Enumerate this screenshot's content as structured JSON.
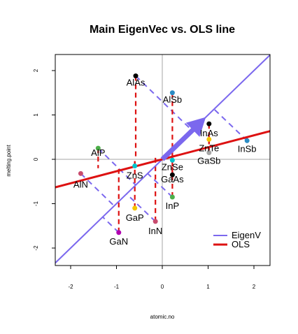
{
  "chart_data": {
    "type": "scatter",
    "title": "Main EigenVec vs. OLS line",
    "xlabel": "atomic.no",
    "ylabel": "melting.point",
    "xlim": [
      -2.35,
      2.4
    ],
    "ylim": [
      -2.4,
      2.4
    ],
    "xticks": [
      -2,
      -1,
      0,
      1,
      2
    ],
    "yticks": [
      -2,
      -1,
      0,
      1,
      2
    ],
    "reference_lines": {
      "h": 0,
      "v": 0,
      "color": "#a6a6a6"
    },
    "points": [
      {
        "label": "AlAs",
        "x": -0.58,
        "y": 1.88,
        "proj_x": -0.58,
        "proj_y": 0.0,
        "color": "#000000"
      },
      {
        "label": "AlSb",
        "x": 0.22,
        "y": 1.5,
        "proj_x": 0.22,
        "proj_y": 0.18,
        "color": "#2b8cc4"
      },
      {
        "label": "InAs",
        "x": 1.02,
        "y": 0.8,
        "proj_x": 1.02,
        "proj_y": 0.35,
        "color": "#000000"
      },
      {
        "label": "ZnTe",
        "x": 1.02,
        "y": 0.45,
        "proj_x": 1.02,
        "proj_y": 0.35,
        "color": "#f5c400"
      },
      {
        "label": "InSb",
        "x": 1.85,
        "y": 0.42,
        "proj_x": 1.85,
        "proj_y": 0.52,
        "color": "#2b8cc4"
      },
      {
        "label": "GaSb",
        "x": 1.02,
        "y": 0.15,
        "proj_x": 1.02,
        "proj_y": 0.35,
        "color": "#a6a6a6"
      },
      {
        "label": "ZnSe",
        "x": 0.22,
        "y": -0.02,
        "proj_x": 0.22,
        "proj_y": 0.18,
        "color": "#00c5cd"
      },
      {
        "label": "GaAs",
        "x": 0.22,
        "y": -0.35,
        "proj_x": 0.22,
        "proj_y": 0.18,
        "color": "#000000"
      },
      {
        "label": "AlP",
        "x": -1.4,
        "y": 0.25,
        "proj_x": -1.4,
        "proj_y": -0.2,
        "color": "#4daf4a"
      },
      {
        "label": "ZnS",
        "x": -0.6,
        "y": -0.15,
        "proj_x": -0.6,
        "proj_y": 0.0,
        "color": "#00c5cd"
      },
      {
        "label": "AlN",
        "x": -1.78,
        "y": -0.32,
        "proj_x": -1.78,
        "proj_y": -0.32,
        "color": "#c84b6e"
      },
      {
        "label": "InP",
        "x": 0.22,
        "y": -0.85,
        "proj_x": 0.22,
        "proj_y": 0.18,
        "color": "#4daf4a"
      },
      {
        "label": "GaP",
        "x": -0.6,
        "y": -1.1,
        "proj_x": -0.6,
        "proj_y": 0.0,
        "color": "#f5c400"
      },
      {
        "label": "InN",
        "x": -0.15,
        "y": -1.4,
        "proj_x": -0.15,
        "proj_y": 0.09,
        "color": "#c84b6e"
      },
      {
        "label": "GaN",
        "x": -0.95,
        "y": -1.65,
        "proj_x": -0.95,
        "proj_y": -0.14,
        "color": "#b000b0"
      }
    ],
    "eigen_line": {
      "name": "EigenV",
      "slope": 1.0,
      "intercept": 0.0,
      "color": "#7b68ee"
    },
    "ols_line": {
      "name": "OLS",
      "slope": 0.27,
      "intercept": 0.0,
      "color": "#dd1111"
    },
    "eigen_projections": [
      {
        "from": [
          -0.58,
          1.88
        ],
        "to": [
          0.65,
          0.65
        ]
      },
      {
        "from": [
          1.85,
          0.42
        ],
        "to": [
          1.13,
          1.13
        ]
      },
      {
        "from": [
          -1.4,
          0.25
        ],
        "to": [
          -0.58,
          -0.58
        ]
      },
      {
        "from": [
          -1.78,
          -0.32
        ],
        "to": [
          -1.05,
          -1.05
        ]
      },
      {
        "from": [
          -0.95,
          -1.65
        ],
        "to": [
          -1.3,
          -1.3
        ]
      },
      {
        "from": [
          0.22,
          -0.85
        ],
        "to": [
          -0.32,
          -0.32
        ]
      },
      {
        "from": [
          -0.15,
          -1.4
        ],
        "to": [
          -0.78,
          -0.78
        ]
      }
    ],
    "eigen_vector": {
      "from": [
        0.0,
        0.0
      ],
      "to": [
        0.95,
        0.95
      ]
    },
    "legend": {
      "position": "bottom-right",
      "entries": [
        "EigenV",
        "OLS"
      ]
    }
  }
}
